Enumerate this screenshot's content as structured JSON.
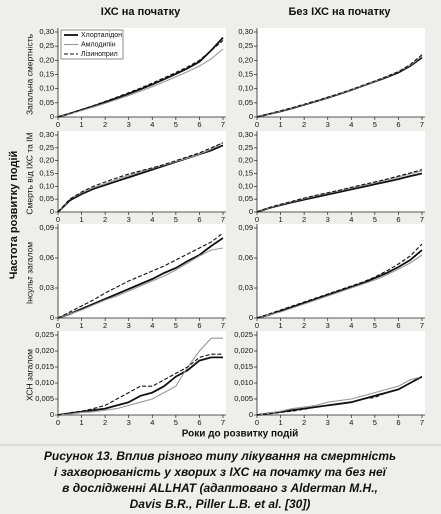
{
  "figure": {
    "ylabel": "Частота розвитку подій",
    "xlabel": "Роки до розвитку подій",
    "caption": [
      "Рисунок 13. Вплив різного типу лікування на смертність",
      "і захворюваність у хворих з ІХС на початку та без неї",
      "в дослідженні ALLHAT (адаптовано з Alderman M.H.,",
      "Davis B.R., Piller L.B. et al. [30])"
    ]
  },
  "chart_data": [
    {
      "type": "line",
      "title": "ІХС на початку",
      "ylabel": "Загальна смертність",
      "legend": "top-left",
      "x": [
        0,
        0.5,
        1,
        1.5,
        2,
        2.5,
        3,
        3.5,
        4,
        4.5,
        5,
        5.5,
        6,
        6.5,
        7
      ],
      "xlim": [
        0,
        7
      ],
      "xticks": [
        0,
        1,
        2,
        3,
        4,
        5,
        6,
        7
      ],
      "ylim": [
        0,
        0.3
      ],
      "yticks": [
        0,
        {
          "value": 0.05,
          "label": "0,05"
        },
        {
          "value": 0.1,
          "label": "0,10"
        },
        {
          "value": 0.15,
          "label": "0,15"
        },
        {
          "value": 0.2,
          "label": "0,20"
        },
        {
          "value": 0.25,
          "label": "0,25"
        },
        {
          "value": 0.3,
          "label": "0,30"
        }
      ],
      "series": [
        {
          "name": "Хлорталідон",
          "color": "#111111",
          "width": 1.8,
          "dash": "none",
          "values": [
            0,
            0.012,
            0.025,
            0.038,
            0.052,
            0.067,
            0.082,
            0.098,
            0.115,
            0.133,
            0.152,
            0.172,
            0.195,
            0.235,
            0.28
          ]
        },
        {
          "name": "Амлодипін",
          "color": "#999999",
          "width": 1.1,
          "dash": "none",
          "values": [
            0,
            0.011,
            0.023,
            0.035,
            0.048,
            0.062,
            0.076,
            0.091,
            0.107,
            0.124,
            0.142,
            0.16,
            0.18,
            0.205,
            0.24
          ]
        },
        {
          "name": "Лізиноприл",
          "color": "#111111",
          "width": 1.1,
          "dash": "4,2",
          "values": [
            0,
            0.013,
            0.026,
            0.04,
            0.055,
            0.07,
            0.086,
            0.102,
            0.12,
            0.138,
            0.157,
            0.177,
            0.2,
            0.235,
            0.27
          ]
        }
      ]
    },
    {
      "type": "line",
      "title": "Без ІХС на початку",
      "x": [
        0,
        0.5,
        1,
        1.5,
        2,
        2.5,
        3,
        3.5,
        4,
        4.5,
        5,
        5.5,
        6,
        6.5,
        7
      ],
      "xlim": [
        0,
        7
      ],
      "xticks": [
        0,
        1,
        2,
        3,
        4,
        5,
        6,
        7
      ],
      "ylim": [
        0,
        0.3
      ],
      "yticks": [
        0,
        {
          "value": 0.05,
          "label": "0,05"
        },
        {
          "value": 0.1,
          "label": "0,10"
        },
        {
          "value": 0.15,
          "label": "0,15"
        },
        {
          "value": 0.2,
          "label": "0,20"
        },
        {
          "value": 0.25,
          "label": "0,25"
        },
        {
          "value": 0.3,
          "label": "0,30"
        }
      ],
      "series": [
        {
          "color": "#111111",
          "width": 1.8,
          "dash": "none",
          "values": [
            0,
            0.01,
            0.02,
            0.031,
            0.043,
            0.055,
            0.068,
            0.081,
            0.095,
            0.11,
            0.125,
            0.14,
            0.157,
            0.18,
            0.21
          ]
        },
        {
          "color": "#999999",
          "width": 1.1,
          "dash": "none",
          "values": [
            0,
            0.01,
            0.021,
            0.032,
            0.044,
            0.056,
            0.069,
            0.082,
            0.096,
            0.111,
            0.126,
            0.142,
            0.16,
            0.183,
            0.215
          ]
        },
        {
          "color": "#111111",
          "width": 1.1,
          "dash": "4,2",
          "values": [
            0,
            0.011,
            0.022,
            0.033,
            0.045,
            0.057,
            0.07,
            0.083,
            0.097,
            0.112,
            0.127,
            0.143,
            0.16,
            0.185,
            0.22
          ]
        }
      ]
    },
    {
      "type": "line",
      "ylabel": "Смерть від ІХС та ІМ",
      "x": [
        0,
        0.5,
        1,
        1.5,
        2,
        2.5,
        3,
        3.5,
        4,
        4.5,
        5,
        5.5,
        6,
        6.5,
        7
      ],
      "xlim": [
        0,
        7
      ],
      "xticks": [
        0,
        1,
        2,
        3,
        4,
        5,
        6,
        7
      ],
      "ylim": [
        0,
        0.3
      ],
      "yticks": [
        0,
        {
          "value": 0.05,
          "label": "0,05"
        },
        {
          "value": 0.1,
          "label": "0,10"
        },
        {
          "value": 0.15,
          "label": "0,15"
        },
        {
          "value": 0.2,
          "label": "0,20"
        },
        {
          "value": 0.25,
          "label": "0,25"
        },
        {
          "value": 0.3,
          "label": "0,30"
        }
      ],
      "series": [
        {
          "color": "#111111",
          "width": 1.8,
          "dash": "none",
          "values": [
            0,
            0.045,
            0.07,
            0.09,
            0.105,
            0.12,
            0.135,
            0.15,
            0.165,
            0.18,
            0.195,
            0.21,
            0.225,
            0.24,
            0.26
          ]
        },
        {
          "color": "#999999",
          "width": 1.1,
          "dash": "none",
          "values": [
            0,
            0.05,
            0.075,
            0.095,
            0.11,
            0.127,
            0.142,
            0.157,
            0.17,
            0.183,
            0.197,
            0.21,
            0.225,
            0.245,
            0.27
          ]
        },
        {
          "color": "#111111",
          "width": 1.1,
          "dash": "4,2",
          "values": [
            0,
            0.05,
            0.078,
            0.1,
            0.117,
            0.133,
            0.148,
            0.16,
            0.172,
            0.185,
            0.2,
            0.215,
            0.23,
            0.25,
            0.27
          ]
        }
      ]
    },
    {
      "type": "line",
      "x": [
        0,
        0.5,
        1,
        1.5,
        2,
        2.5,
        3,
        3.5,
        4,
        4.5,
        5,
        5.5,
        6,
        6.5,
        7
      ],
      "xlim": [
        0,
        7
      ],
      "xticks": [
        0,
        1,
        2,
        3,
        4,
        5,
        6,
        7
      ],
      "ylim": [
        0,
        0.3
      ],
      "yticks": [
        0,
        {
          "value": 0.05,
          "label": "0,05"
        },
        {
          "value": 0.1,
          "label": "0,10"
        },
        {
          "value": 0.15,
          "label": "0,15"
        },
        {
          "value": 0.2,
          "label": "0,20"
        },
        {
          "value": 0.25,
          "label": "0,25"
        },
        {
          "value": 0.3,
          "label": "0,30"
        }
      ],
      "series": [
        {
          "color": "#111111",
          "width": 1.8,
          "dash": "none",
          "values": [
            0,
            0.015,
            0.027,
            0.038,
            0.048,
            0.058,
            0.068,
            0.078,
            0.088,
            0.098,
            0.108,
            0.118,
            0.128,
            0.14,
            0.15
          ]
        },
        {
          "color": "#999999",
          "width": 1.1,
          "dash": "none",
          "values": [
            0,
            0.016,
            0.029,
            0.041,
            0.052,
            0.063,
            0.073,
            0.083,
            0.093,
            0.104,
            0.114,
            0.125,
            0.136,
            0.148,
            0.16
          ]
        },
        {
          "color": "#111111",
          "width": 1.1,
          "dash": "4,2",
          "values": [
            0,
            0.017,
            0.03,
            0.042,
            0.054,
            0.065,
            0.075,
            0.085,
            0.096,
            0.107,
            0.117,
            0.128,
            0.14,
            0.152,
            0.165
          ]
        }
      ]
    },
    {
      "type": "line",
      "ylabel": "Інсульт загалом",
      "x": [
        0,
        0.5,
        1,
        1.5,
        2,
        2.5,
        3,
        3.5,
        4,
        4.5,
        5,
        5.5,
        6,
        6.5,
        7
      ],
      "xlim": [
        0,
        7
      ],
      "xticks": [
        0,
        1,
        2,
        3,
        4,
        5,
        6,
        7
      ],
      "ylim": [
        0,
        0.09
      ],
      "yticks": [
        0,
        {
          "value": 0.03,
          "label": "0,03"
        },
        {
          "value": 0.06,
          "label": "0,06"
        },
        {
          "value": 0.09,
          "label": "0,09"
        }
      ],
      "series": [
        {
          "color": "#111111",
          "width": 1.8,
          "dash": "none",
          "values": [
            0,
            0.004,
            0.009,
            0.014,
            0.019,
            0.024,
            0.029,
            0.034,
            0.039,
            0.045,
            0.05,
            0.057,
            0.063,
            0.072,
            0.08
          ]
        },
        {
          "color": "#999999",
          "width": 1.1,
          "dash": "none",
          "values": [
            0,
            0.004,
            0.008,
            0.013,
            0.018,
            0.022,
            0.027,
            0.032,
            0.037,
            0.042,
            0.048,
            0.055,
            0.062,
            0.068,
            0.07
          ]
        },
        {
          "color": "#111111",
          "width": 1.1,
          "dash": "4,2",
          "values": [
            0,
            0.006,
            0.012,
            0.018,
            0.025,
            0.031,
            0.037,
            0.042,
            0.047,
            0.052,
            0.058,
            0.064,
            0.07,
            0.076,
            0.085
          ]
        }
      ]
    },
    {
      "type": "line",
      "x": [
        0,
        0.5,
        1,
        1.5,
        2,
        2.5,
        3,
        3.5,
        4,
        4.5,
        5,
        5.5,
        6,
        6.5,
        7
      ],
      "xlim": [
        0,
        7
      ],
      "xticks": [
        0,
        1,
        2,
        3,
        4,
        5,
        6,
        7
      ],
      "ylim": [
        0,
        0.09
      ],
      "yticks": [
        0,
        {
          "value": 0.03,
          "label": "0,03"
        },
        {
          "value": 0.06,
          "label": "0,06"
        },
        {
          "value": 0.09,
          "label": "0,09"
        }
      ],
      "series": [
        {
          "color": "#111111",
          "width": 1.8,
          "dash": "none",
          "values": [
            0,
            0.003,
            0.007,
            0.011,
            0.015,
            0.019,
            0.023,
            0.027,
            0.031,
            0.035,
            0.04,
            0.045,
            0.051,
            0.058,
            0.068
          ]
        },
        {
          "color": "#999999",
          "width": 1.1,
          "dash": "none",
          "values": [
            0,
            0.003,
            0.006,
            0.01,
            0.014,
            0.018,
            0.022,
            0.026,
            0.03,
            0.034,
            0.038,
            0.043,
            0.049,
            0.055,
            0.063
          ]
        },
        {
          "color": "#111111",
          "width": 1.1,
          "dash": "4,2",
          "values": [
            0,
            0.004,
            0.008,
            0.012,
            0.016,
            0.02,
            0.024,
            0.028,
            0.032,
            0.036,
            0.041,
            0.047,
            0.054,
            0.062,
            0.074
          ]
        }
      ]
    },
    {
      "type": "line",
      "ylabel": "ХСН загалом",
      "x": [
        0,
        0.5,
        1,
        1.5,
        2,
        2.5,
        3,
        3.5,
        4,
        4.5,
        5,
        5.5,
        6,
        6.5,
        7
      ],
      "xlim": [
        0,
        7
      ],
      "xticks": [
        0,
        1,
        2,
        3,
        4,
        5,
        6,
        7
      ],
      "ylim": [
        0,
        0.025
      ],
      "yticks": [
        0,
        {
          "value": 0.005,
          "label": "0,005"
        },
        {
          "value": 0.01,
          "label": "0,010"
        },
        {
          "value": 0.015,
          "label": "0,015"
        },
        {
          "value": 0.02,
          "label": "0,020"
        },
        {
          "value": 0.025,
          "label": "0,025"
        }
      ],
      "series": [
        {
          "color": "#111111",
          "width": 1.8,
          "dash": "none",
          "values": [
            0,
            0.0005,
            0.001,
            0.0015,
            0.002,
            0.003,
            0.004,
            0.006,
            0.007,
            0.009,
            0.012,
            0.014,
            0.017,
            0.018,
            0.018
          ]
        },
        {
          "color": "#999999",
          "width": 1.1,
          "dash": "none",
          "values": [
            0,
            0.0003,
            0.0008,
            0.001,
            0.0015,
            0.002,
            0.003,
            0.004,
            0.005,
            0.007,
            0.009,
            0.015,
            0.02,
            0.024,
            0.024
          ]
        },
        {
          "color": "#111111",
          "width": 1.1,
          "dash": "4,2",
          "values": [
            0,
            0.0007,
            0.0012,
            0.002,
            0.003,
            0.005,
            0.007,
            0.009,
            0.009,
            0.011,
            0.013,
            0.015,
            0.018,
            0.019,
            0.019
          ]
        }
      ]
    },
    {
      "type": "line",
      "x": [
        0,
        0.5,
        1,
        1.5,
        2,
        2.5,
        3,
        3.5,
        4,
        4.5,
        5,
        5.5,
        6,
        6.5,
        7
      ],
      "xlim": [
        0,
        7
      ],
      "xticks": [
        0,
        1,
        2,
        3,
        4,
        5,
        6,
        7
      ],
      "ylim": [
        0,
        0.025
      ],
      "yticks": [
        0,
        {
          "value": 0.005,
          "label": "0,005"
        },
        {
          "value": 0.01,
          "label": "0,010"
        },
        {
          "value": 0.015,
          "label": "0,015"
        },
        {
          "value": 0.02,
          "label": "0,020"
        },
        {
          "value": 0.025,
          "label": "0,025"
        }
      ],
      "series": [
        {
          "color": "#111111",
          "width": 1.8,
          "dash": "none",
          "values": [
            0,
            0.0005,
            0.001,
            0.0015,
            0.002,
            0.0025,
            0.003,
            0.0035,
            0.004,
            0.005,
            0.006,
            0.007,
            0.008,
            0.01,
            0.012
          ]
        },
        {
          "color": "#999999",
          "width": 1.1,
          "dash": "none",
          "values": [
            0,
            0.0005,
            0.0012,
            0.002,
            0.0025,
            0.003,
            0.004,
            0.0045,
            0.005,
            0.006,
            0.007,
            0.008,
            0.009,
            0.011,
            0.012
          ]
        },
        {
          "color": "#111111",
          "width": 1.1,
          "dash": "4,2",
          "values": [
            0,
            0.0003,
            0.0008,
            0.0012,
            0.0018,
            0.0025,
            0.003,
            0.0035,
            0.004,
            0.005,
            0.0055,
            0.007,
            0.008,
            0.01,
            0.012
          ]
        }
      ]
    }
  ]
}
